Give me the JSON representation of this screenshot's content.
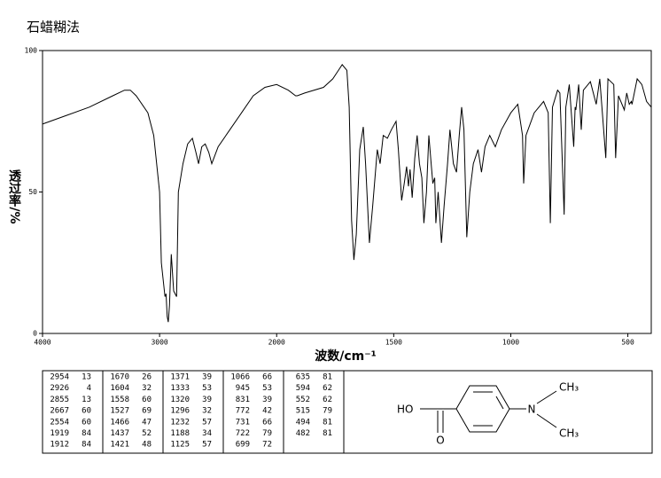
{
  "chart_data": {
    "type": "line",
    "title": "石蜡糊法",
    "xlabel": "波数/cm⁻¹",
    "ylabel": "透过率/%",
    "x": [
      4000,
      3800,
      3600,
      3400,
      3300,
      3250,
      3200,
      3100,
      3050,
      3000,
      2985,
      2954,
      2945,
      2935,
      2926,
      2915,
      2900,
      2880,
      2855,
      2840,
      2800,
      2760,
      2720,
      2690,
      2667,
      2640,
      2610,
      2580,
      2554,
      2500,
      2400,
      2300,
      2200,
      2100,
      2000,
      1950,
      1919,
      1912,
      1880,
      1800,
      1760,
      1720,
      1700,
      1690,
      1680,
      1670,
      1660,
      1645,
      1630,
      1620,
      1604,
      1590,
      1570,
      1558,
      1545,
      1527,
      1510,
      1490,
      1480,
      1466,
      1455,
      1445,
      1437,
      1430,
      1421,
      1410,
      1400,
      1390,
      1380,
      1371,
      1360,
      1350,
      1340,
      1333,
      1325,
      1320,
      1310,
      1296,
      1285,
      1270,
      1260,
      1245,
      1232,
      1220,
      1210,
      1200,
      1188,
      1175,
      1160,
      1140,
      1125,
      1110,
      1090,
      1066,
      1040,
      1000,
      970,
      950,
      945,
      935,
      900,
      860,
      840,
      831,
      822,
      800,
      790,
      772,
      765,
      750,
      731,
      725,
      722,
      710,
      699,
      690,
      660,
      635,
      620,
      594,
      585,
      560,
      552,
      540,
      515,
      505,
      494,
      485,
      482,
      460,
      440,
      420,
      400
    ],
    "values": [
      74,
      77,
      80,
      84,
      86,
      86,
      84,
      78,
      70,
      50,
      25,
      13,
      14,
      6,
      4,
      10,
      28,
      15,
      13,
      50,
      60,
      67,
      69,
      64,
      60,
      66,
      67,
      64,
      60,
      66,
      72,
      78,
      84,
      87,
      88,
      86,
      84,
      84,
      85,
      87,
      90,
      95,
      93,
      80,
      40,
      26,
      35,
      65,
      73,
      60,
      32,
      45,
      65,
      60,
      70,
      69,
      72,
      75,
      65,
      47,
      53,
      59,
      52,
      58,
      48,
      62,
      70,
      60,
      55,
      39,
      50,
      70,
      60,
      53,
      55,
      39,
      50,
      32,
      45,
      60,
      72,
      60,
      57,
      70,
      80,
      72,
      34,
      50,
      60,
      65,
      57,
      66,
      70,
      66,
      72,
      78,
      81,
      70,
      53,
      70,
      78,
      82,
      78,
      39,
      80,
      86,
      85,
      42,
      80,
      88,
      66,
      80,
      79,
      88,
      72,
      86,
      89,
      81,
      90,
      62,
      90,
      88,
      62,
      84,
      79,
      85,
      81,
      82,
      81,
      90,
      88,
      82,
      80
    ],
    "color": "#000000",
    "xlim": [
      4000,
      400
    ],
    "xticks": [
      4000,
      3000,
      2000,
      1500,
      1000,
      500
    ],
    "ylim": [
      0,
      100
    ],
    "yticks": [
      0,
      50,
      100
    ]
  },
  "peak_table": [
    [
      [
        2954,
        13
      ],
      [
        2926,
        4
      ],
      [
        2855,
        13
      ],
      [
        2667,
        60
      ],
      [
        2554,
        60
      ],
      [
        1919,
        84
      ],
      [
        1912,
        84
      ]
    ],
    [
      [
        1670,
        26
      ],
      [
        1604,
        32
      ],
      [
        1558,
        60
      ],
      [
        1527,
        69
      ],
      [
        1466,
        47
      ],
      [
        1437,
        52
      ],
      [
        1421,
        48
      ]
    ],
    [
      [
        1371,
        39
      ],
      [
        1333,
        53
      ],
      [
        1320,
        39
      ],
      [
        1296,
        32
      ],
      [
        1232,
        57
      ],
      [
        1188,
        34
      ],
      [
        1125,
        57
      ]
    ],
    [
      [
        1066,
        66
      ],
      [
        945,
        53
      ],
      [
        831,
        39
      ],
      [
        772,
        42
      ],
      [
        731,
        66
      ],
      [
        722,
        79
      ],
      [
        699,
        72
      ]
    ],
    [
      [
        635,
        81
      ],
      [
        594,
        62
      ],
      [
        552,
        62
      ],
      [
        515,
        79
      ],
      [
        494,
        81
      ],
      [
        482,
        81
      ]
    ]
  ],
  "structure": {
    "hydroxyl": "HO",
    "oxygen": "O",
    "nitrogen": "N",
    "methyl_top": "CH₃",
    "methyl_bottom": "CH₃"
  }
}
